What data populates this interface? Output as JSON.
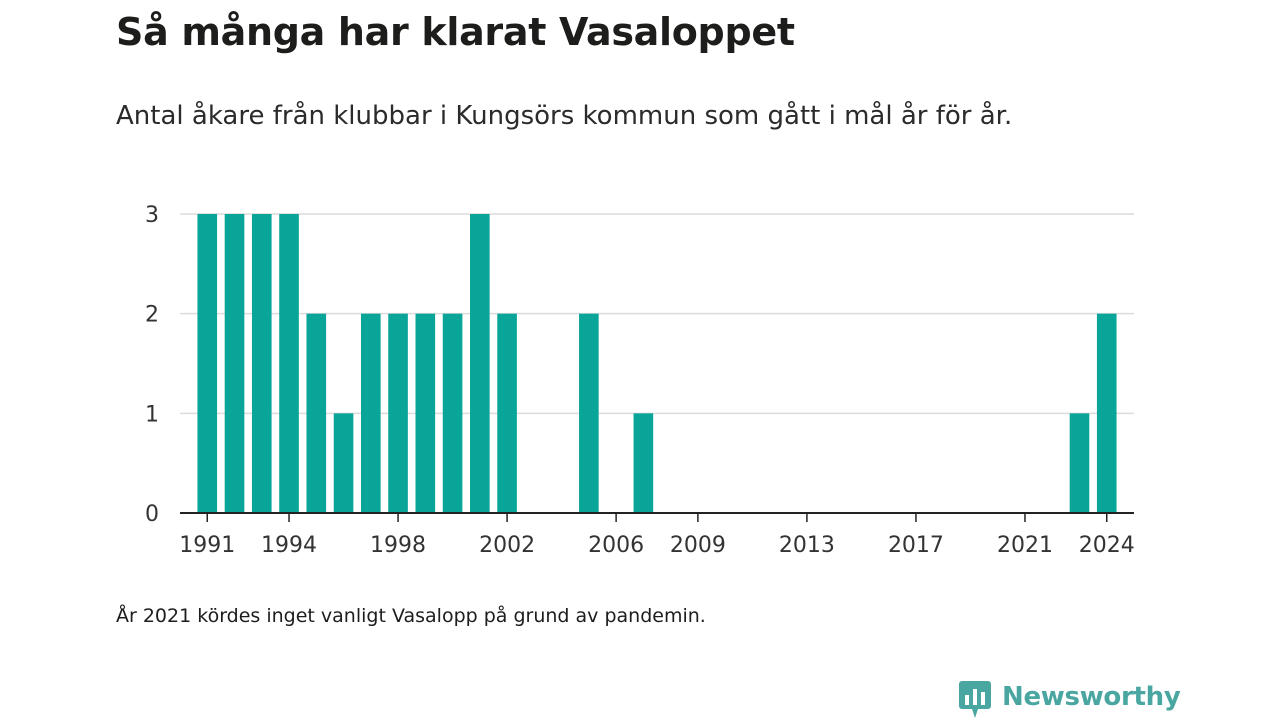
{
  "title": "Så många har klarat Vasaloppet",
  "subtitle": "Antal åkare från klubbar i Kungsörs kommun som gått i mål år för år.",
  "note": "År 2021 kördes inget vanligt Vasalopp på grund av pandemin.",
  "brand": {
    "name": "Newsworthy",
    "icon": "newsworthy-logo-icon",
    "color": "#4aa6a1"
  },
  "colors": {
    "bar": "#0aa599",
    "grid": "#dcdcdc",
    "axis": "#222222",
    "text": "#333333"
  },
  "chart_data": {
    "type": "bar",
    "x": [
      1991,
      1992,
      1993,
      1994,
      1995,
      1996,
      1997,
      1998,
      1999,
      2000,
      2001,
      2002,
      2005,
      2007,
      2023,
      2024
    ],
    "values": [
      3,
      3,
      3,
      3,
      2,
      1,
      2,
      2,
      2,
      2,
      3,
      2,
      2,
      1,
      1,
      2
    ],
    "xticks": [
      1991,
      1994,
      1998,
      2002,
      2006,
      2009,
      2013,
      2017,
      2021,
      2024
    ],
    "yticks": [
      0,
      1,
      2,
      3
    ],
    "xlim": [
      1990,
      2025
    ],
    "ylim": [
      0,
      3
    ],
    "xlabel": "",
    "ylabel": "",
    "grid": true,
    "legend": "none"
  }
}
